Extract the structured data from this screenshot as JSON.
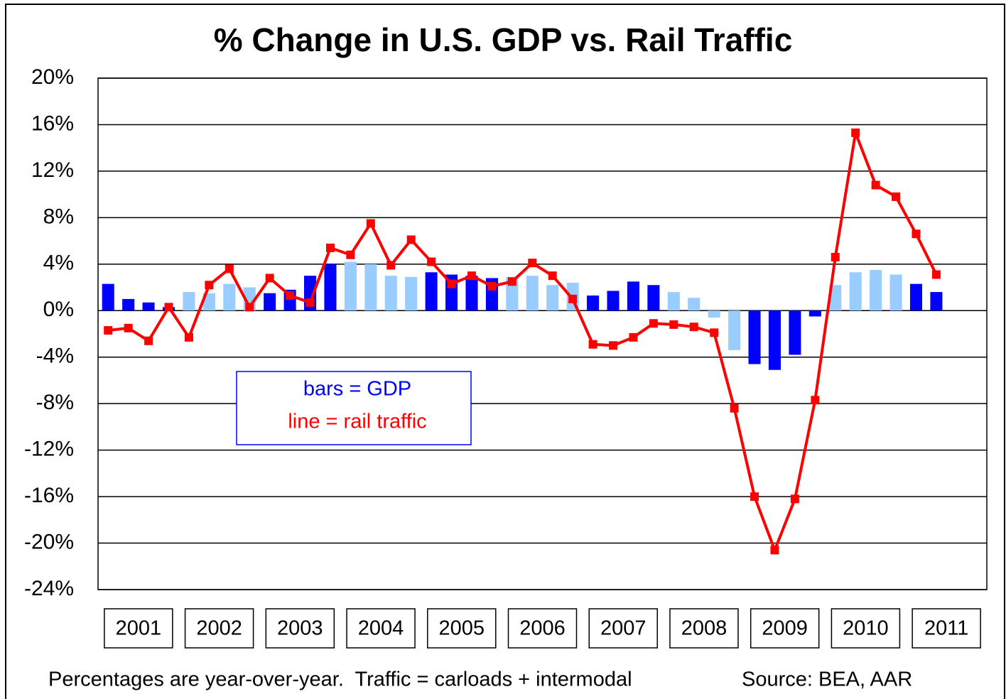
{
  "chart_data": {
    "type": "bar-line",
    "title": "% Change in U.S. GDP vs. Rail Traffic",
    "years": [
      "2001",
      "2002",
      "2003",
      "2004",
      "2005",
      "2006",
      "2007",
      "2008",
      "2009",
      "2010",
      "2011"
    ],
    "quarters_per_year": 4,
    "series": [
      {
        "type": "bar",
        "colors": [
          "#0000ff",
          "#99ccff"
        ],
        "values": [
          2.3,
          1.0,
          0.7,
          0.3,
          1.6,
          1.5,
          2.3,
          2.0,
          1.5,
          1.8,
          3.0,
          4.0,
          4.2,
          4.0,
          3.0,
          2.9,
          3.3,
          3.1,
          3.0,
          2.8,
          2.9,
          3.0,
          2.2,
          2.4,
          1.3,
          1.7,
          2.5,
          2.2,
          1.6,
          1.1,
          -0.6,
          -3.4,
          -4.6,
          -5.1,
          -3.8,
          -0.5,
          2.2,
          3.3,
          3.5,
          3.1,
          2.3,
          1.6
        ]
      },
      {
        "type": "line",
        "color": "#ff0000",
        "values": [
          -1.7,
          -1.5,
          -2.6,
          0.3,
          -2.3,
          2.2,
          3.6,
          0.3,
          2.8,
          1.3,
          0.7,
          5.4,
          4.8,
          7.5,
          3.9,
          6.1,
          4.2,
          2.3,
          3.0,
          2.1,
          2.5,
          4.1,
          3.0,
          1.0,
          -2.9,
          -3.0,
          -2.3,
          -1.1,
          -1.2,
          -1.4,
          -1.9,
          -8.4,
          -16.0,
          -20.6,
          -16.2,
          -7.7,
          4.6,
          15.3,
          10.8,
          9.8,
          6.6,
          3.1
        ]
      }
    ],
    "ylim": [
      -24,
      20
    ],
    "yticks": [
      {
        "value": 20,
        "label": "20%"
      },
      {
        "value": 16,
        "label": "16%"
      },
      {
        "value": 12,
        "label": "12%"
      },
      {
        "value": 8,
        "label": "8%"
      },
      {
        "value": 4,
        "label": "4%"
      },
      {
        "value": 0,
        "label": "0%"
      },
      {
        "value": -4,
        "label": "-4%"
      },
      {
        "value": -8,
        "label": "-8%"
      },
      {
        "value": -12,
        "label": "-12%"
      },
      {
        "value": -16,
        "label": "-16%"
      },
      {
        "value": -20,
        "label": "-20%"
      },
      {
        "value": -24,
        "label": "-24%"
      }
    ],
    "grid": true,
    "annotations": [
      "bars = GDP",
      "line = rail traffic"
    ],
    "footnote": "Percentages are year-over-year.  Traffic = carloads + intermodal",
    "source": "Source: BEA, AAR"
  }
}
